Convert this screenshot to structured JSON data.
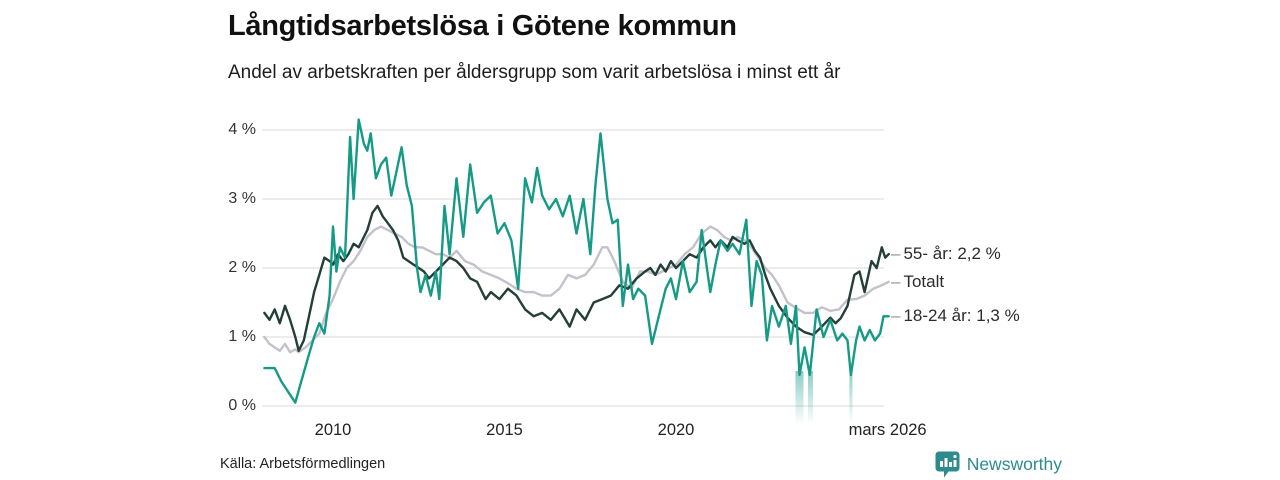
{
  "header": {
    "title": "Långtidsarbetslösa i Götene kommun",
    "subtitle": "Andel av arbetskraften per åldersgrupp som varit arbetslösa i minst ett år"
  },
  "footer": {
    "source": "Källa: Arbetsförmedlingen",
    "brand": "Newsworthy"
  },
  "colors": {
    "series_55": "#233f38",
    "series_totalt": "#c3c1cb",
    "series_1824": "#159a85",
    "grid": "#e1e1e4",
    "brand": "#2e8b8d",
    "tick_text": "#333333"
  },
  "chart_data": {
    "type": "line",
    "title": "Långtidsarbetslösa i Götene kommun",
    "subtitle": "Andel av arbetskraften per åldersgrupp som varit arbetslösa i minst ett år",
    "unit": "%",
    "x_range": [
      2008.0,
      2026.25
    ],
    "ylim": [
      0,
      4.3
    ],
    "grid": "horizontal-only",
    "legend_position": "right-end-labels",
    "x_axis": {
      "ticks": [
        {
          "label": "2010",
          "year": 2010
        },
        {
          "label": "2015",
          "year": 2015
        },
        {
          "label": "2020",
          "year": 2020
        },
        {
          "label": "mars 2026",
          "year": 2026.17
        }
      ]
    },
    "y_axis": {
      "ticks": [
        {
          "label": "4 %",
          "value": 4
        },
        {
          "label": "3 %",
          "value": 3
        },
        {
          "label": "2 %",
          "value": 2
        },
        {
          "label": "1 %",
          "value": 1
        },
        {
          "label": "0 %",
          "value": 0
        }
      ]
    },
    "series": [
      {
        "id": "55",
        "name": "55- år",
        "label": "55- år: 2,2 %",
        "end_value": 2.2,
        "color": "#233f38",
        "z": 2,
        "x": [
          2008.0,
          2008.15,
          2008.3,
          2008.45,
          2008.6,
          2008.75,
          2008.9,
          2009.0,
          2009.15,
          2009.3,
          2009.45,
          2009.6,
          2009.75,
          2009.9,
          2010.0,
          2010.15,
          2010.3,
          2010.45,
          2010.6,
          2010.75,
          2010.9,
          2011.0,
          2011.15,
          2011.3,
          2011.45,
          2011.6,
          2011.75,
          2011.9,
          2012.05,
          2012.2,
          2012.35,
          2012.5,
          2012.65,
          2012.8,
          2013.0,
          2013.2,
          2013.4,
          2013.6,
          2013.8,
          2014.0,
          2014.2,
          2014.45,
          2014.6,
          2014.85,
          2015.1,
          2015.35,
          2015.6,
          2015.85,
          2016.1,
          2016.35,
          2016.6,
          2016.9,
          2017.1,
          2017.35,
          2017.6,
          2017.85,
          2018.1,
          2018.35,
          2018.6,
          2018.85,
          2019.1,
          2019.25,
          2019.4,
          2019.55,
          2019.7,
          2019.85,
          2020.0,
          2020.2,
          2020.4,
          2020.6,
          2020.8,
          2021.0,
          2021.15,
          2021.3,
          2021.5,
          2021.65,
          2021.8,
          2022.0,
          2022.15,
          2022.3,
          2022.45,
          2022.6,
          2022.75,
          2023.0,
          2023.25,
          2023.5,
          2023.75,
          2024.0,
          2024.25,
          2024.5,
          2024.65,
          2024.8,
          2025.0,
          2025.2,
          2025.35,
          2025.5,
          2025.7,
          2025.85,
          2026.0,
          2026.1,
          2026.2
        ],
        "y": [
          1.35,
          1.25,
          1.4,
          1.2,
          1.45,
          1.25,
          1.0,
          0.8,
          0.95,
          1.3,
          1.65,
          1.9,
          2.15,
          2.1,
          2.05,
          2.2,
          2.1,
          2.2,
          2.35,
          2.3,
          2.45,
          2.55,
          2.8,
          2.9,
          2.75,
          2.65,
          2.55,
          2.4,
          2.15,
          2.1,
          2.05,
          2.0,
          1.95,
          1.85,
          1.95,
          2.05,
          2.15,
          2.1,
          2.0,
          1.85,
          1.8,
          1.55,
          1.65,
          1.55,
          1.7,
          1.6,
          1.4,
          1.3,
          1.35,
          1.25,
          1.4,
          1.15,
          1.4,
          1.25,
          1.5,
          1.55,
          1.6,
          1.75,
          1.7,
          1.85,
          1.95,
          2.0,
          1.9,
          2.05,
          1.95,
          2.1,
          2.0,
          2.1,
          2.2,
          2.15,
          2.3,
          2.4,
          2.3,
          2.4,
          2.3,
          2.45,
          2.4,
          2.35,
          2.4,
          2.25,
          2.15,
          1.9,
          1.7,
          1.45,
          1.28,
          1.15,
          1.07,
          1.03,
          1.15,
          1.28,
          1.2,
          1.27,
          1.45,
          1.9,
          1.95,
          1.65,
          2.1,
          2.0,
          2.3,
          2.15,
          2.2
        ]
      },
      {
        "id": "totalt",
        "name": "Totalt",
        "label": "Totalt",
        "end_value": 1.8,
        "color": "#c3c1cb",
        "z": 1,
        "x": [
          2008.0,
          2008.15,
          2008.3,
          2008.45,
          2008.6,
          2008.75,
          2008.9,
          2009.0,
          2009.2,
          2009.4,
          2009.6,
          2009.8,
          2010.0,
          2010.2,
          2010.4,
          2010.6,
          2010.8,
          2011.0,
          2011.2,
          2011.4,
          2011.6,
          2011.8,
          2012.0,
          2012.2,
          2012.4,
          2012.6,
          2012.8,
          2013.0,
          2013.2,
          2013.4,
          2013.6,
          2013.85,
          2014.1,
          2014.35,
          2014.6,
          2014.85,
          2015.1,
          2015.35,
          2015.6,
          2015.85,
          2016.1,
          2016.35,
          2016.6,
          2016.85,
          2017.1,
          2017.35,
          2017.6,
          2017.85,
          2018.0,
          2018.2,
          2018.45,
          2018.7,
          2018.95,
          2019.2,
          2019.4,
          2019.6,
          2019.8,
          2020.0,
          2020.25,
          2020.5,
          2020.75,
          2021.0,
          2021.2,
          2021.4,
          2021.6,
          2021.8,
          2022.0,
          2022.2,
          2022.4,
          2022.6,
          2022.8,
          2023.0,
          2023.25,
          2023.5,
          2023.75,
          2024.0,
          2024.25,
          2024.5,
          2024.75,
          2025.0,
          2025.25,
          2025.5,
          2025.75,
          2026.0,
          2026.2
        ],
        "y": [
          1.0,
          0.9,
          0.85,
          0.8,
          0.9,
          0.78,
          0.82,
          0.78,
          0.85,
          0.95,
          1.05,
          1.35,
          1.55,
          1.8,
          2.0,
          2.1,
          2.25,
          2.45,
          2.55,
          2.6,
          2.55,
          2.5,
          2.45,
          2.35,
          2.3,
          2.3,
          2.25,
          2.2,
          2.2,
          2.15,
          2.25,
          2.1,
          2.05,
          1.95,
          1.9,
          1.85,
          1.78,
          1.7,
          1.65,
          1.65,
          1.6,
          1.6,
          1.7,
          1.9,
          1.85,
          1.9,
          2.05,
          2.3,
          2.3,
          2.1,
          1.8,
          1.7,
          1.95,
          1.95,
          1.9,
          1.95,
          2.0,
          2.05,
          2.2,
          2.3,
          2.5,
          2.6,
          2.55,
          2.45,
          2.4,
          2.45,
          2.4,
          2.3,
          2.15,
          2.0,
          1.9,
          1.75,
          1.5,
          1.42,
          1.35,
          1.35,
          1.43,
          1.38,
          1.4,
          1.54,
          1.55,
          1.6,
          1.7,
          1.75,
          1.8
        ]
      },
      {
        "id": "1824",
        "name": "18-24 år",
        "label": "18-24 år: 1,3 %",
        "end_value": 1.3,
        "color": "#159a85",
        "z": 3,
        "x": [
          2008.0,
          2008.3,
          2008.5,
          2008.7,
          2008.9,
          2009.1,
          2009.3,
          2009.45,
          2009.6,
          2009.75,
          2009.9,
          2010.0,
          2010.1,
          2010.2,
          2010.35,
          2010.5,
          2010.6,
          2010.75,
          2010.9,
          2011.0,
          2011.1,
          2011.25,
          2011.4,
          2011.55,
          2011.7,
          2011.85,
          2012.0,
          2012.15,
          2012.3,
          2012.45,
          2012.55,
          2012.7,
          2012.85,
          2013.0,
          2013.1,
          2013.25,
          2013.4,
          2013.6,
          2013.8,
          2014.0,
          2014.2,
          2014.4,
          2014.6,
          2014.8,
          2015.0,
          2015.2,
          2015.4,
          2015.6,
          2015.8,
          2015.95,
          2016.1,
          2016.3,
          2016.5,
          2016.7,
          2016.9,
          2017.1,
          2017.3,
          2017.5,
          2017.65,
          2017.8,
          2018.0,
          2018.15,
          2018.3,
          2018.45,
          2018.6,
          2018.75,
          2018.9,
          2019.1,
          2019.3,
          2019.5,
          2019.7,
          2019.85,
          2020.0,
          2020.2,
          2020.4,
          2020.6,
          2020.75,
          2020.9,
          2021.0,
          2021.15,
          2021.3,
          2021.5,
          2021.65,
          2021.85,
          2022.05,
          2022.2,
          2022.35,
          2022.5,
          2022.65,
          2022.8,
          2023.0,
          2023.2,
          2023.35,
          2023.5,
          2023.6,
          2023.75,
          2023.9,
          2024.1,
          2024.3,
          2024.5,
          2024.7,
          2024.85,
          2025.0,
          2025.1,
          2025.25,
          2025.35,
          2025.5,
          2025.65,
          2025.8,
          2025.95,
          2026.05,
          2026.2
        ],
        "y": [
          0.55,
          0.55,
          0.35,
          0.2,
          0.05,
          0.4,
          0.75,
          1.0,
          1.2,
          1.05,
          1.6,
          2.6,
          1.95,
          2.3,
          2.15,
          3.9,
          3.0,
          4.15,
          3.8,
          3.7,
          3.95,
          3.3,
          3.5,
          3.6,
          3.05,
          3.4,
          3.75,
          3.2,
          2.9,
          2.0,
          1.65,
          1.9,
          1.6,
          1.95,
          1.55,
          2.9,
          2.2,
          3.3,
          2.45,
          3.5,
          2.8,
          2.95,
          3.05,
          2.5,
          2.65,
          2.4,
          1.7,
          3.3,
          2.95,
          3.45,
          3.05,
          2.85,
          3.0,
          2.75,
          3.05,
          2.5,
          3.0,
          2.2,
          3.2,
          3.95,
          3.0,
          2.65,
          2.7,
          1.45,
          2.05,
          1.55,
          1.7,
          1.6,
          0.9,
          1.3,
          1.7,
          1.85,
          1.55,
          2.1,
          1.65,
          1.8,
          2.55,
          2.0,
          1.65,
          2.05,
          2.4,
          2.25,
          2.35,
          2.2,
          2.7,
          1.45,
          2.1,
          1.9,
          0.95,
          1.45,
          1.15,
          1.45,
          0.9,
          1.45,
          0.45,
          0.85,
          0.45,
          1.4,
          1.0,
          1.25,
          0.95,
          1.05,
          0.95,
          0.45,
          0.95,
          1.15,
          0.95,
          1.1,
          0.95,
          1.05,
          1.3,
          1.3
        ]
      }
    ],
    "fade_markers": [
      {
        "year": 2023.6,
        "width": 8
      },
      {
        "year": 2023.92,
        "width": 5
      },
      {
        "year": 2025.1,
        "width": 3
      }
    ]
  }
}
